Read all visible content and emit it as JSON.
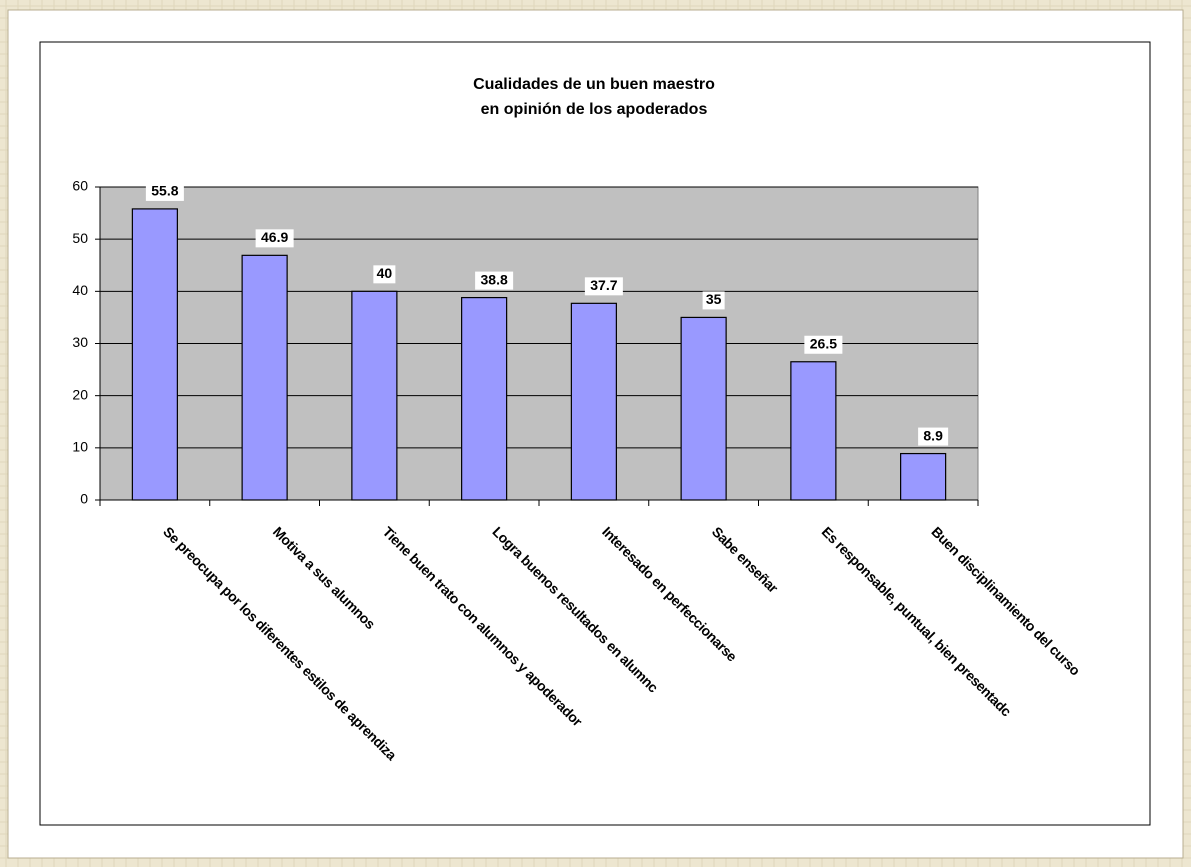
{
  "chart_data": {
    "type": "bar",
    "title": [
      "Cualidades de un buen maestro",
      "en opinión de los apoderados"
    ],
    "categories": [
      "Se preocupa por los diferentes estilos de aprendiza",
      "Motiva a sus alumnos",
      "Tiene buen trato con alumnos y apoderador",
      "Logra buenos resultados en alumnc",
      "Interesado en perfeccionarse",
      "Sabe enseñar",
      "Es responsable, puntual, bien presentadc",
      "Buen disciplinamiento del curso"
    ],
    "values": [
      55.8,
      46.9,
      40,
      38.8,
      37.7,
      35,
      26.5,
      8.9
    ],
    "color": "#9999ff",
    "ylim": [
      0,
      60
    ],
    "yticks": [
      0,
      10,
      20,
      30,
      40,
      50,
      60
    ],
    "grid": true
  }
}
